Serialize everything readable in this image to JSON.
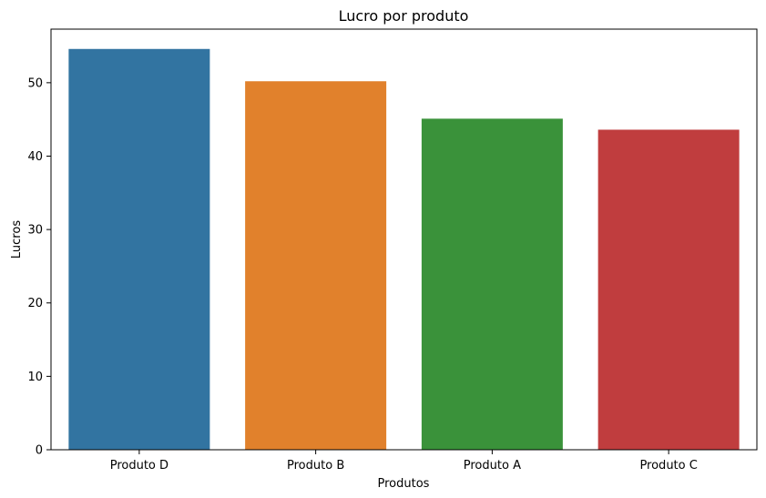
{
  "chart_data": {
    "type": "bar",
    "title": "Lucro por produto",
    "xlabel": "Produtos",
    "ylabel": "Lucros",
    "categories": [
      "Produto D",
      "Produto B",
      "Produto A",
      "Produto C"
    ],
    "values": [
      54.6,
      50.2,
      45.1,
      43.6
    ],
    "colors": [
      "#3274a1",
      "#e1812c",
      "#3a923a",
      "#c03d3e"
    ],
    "yticks": [
      0,
      10,
      20,
      30,
      40,
      50
    ],
    "ylim": [
      0,
      57.3
    ],
    "grid": false,
    "legend": "none"
  }
}
